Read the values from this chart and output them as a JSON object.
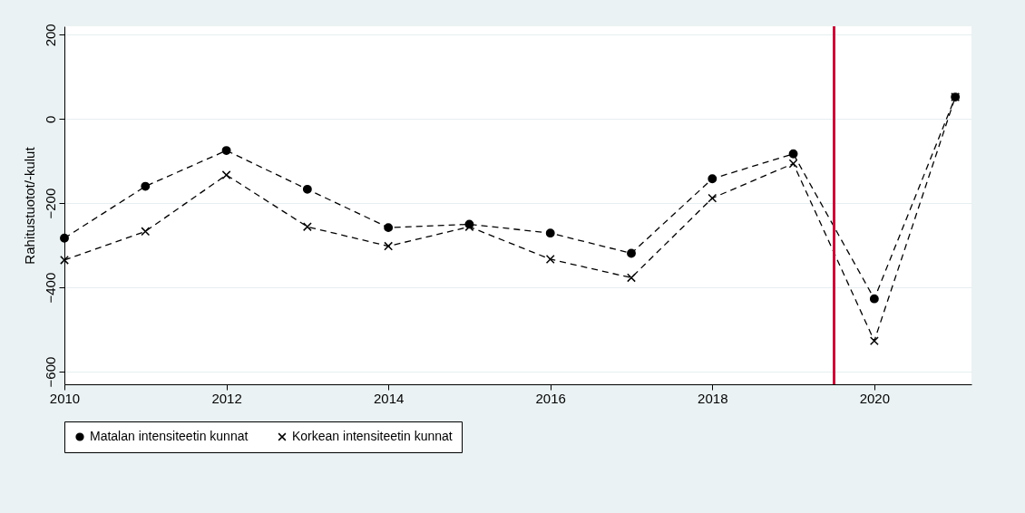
{
  "chart_data": {
    "type": "line",
    "ylabel": "Rahitustuotot/-kulut",
    "x": [
      2010,
      2011,
      2012,
      2013,
      2014,
      2015,
      2016,
      2017,
      2018,
      2019,
      2020,
      2021
    ],
    "xlim": [
      2010,
      2021.2
    ],
    "xticks": [
      2010,
      2012,
      2014,
      2016,
      2018,
      2020
    ],
    "ylim": [
      -630,
      220
    ],
    "yticks": [
      -600,
      -400,
      -200,
      0,
      200
    ],
    "grid": "y",
    "legend": "bottom",
    "line_style": "dashed",
    "series": [
      {
        "name": "Matalan intensiteetin kunnat",
        "color": "#000000",
        "marker": "circle",
        "values": [
          -283,
          -160,
          -75,
          -167,
          -258,
          -250,
          -271,
          -319,
          -142,
          -83,
          -427,
          52
        ]
      },
      {
        "name": "Korkean intensiteetin kunnat",
        "color": "#000000",
        "marker": "cross",
        "values": [
          -335,
          -267,
          -133,
          -256,
          -302,
          -256,
          -333,
          -377,
          -188,
          -106,
          -527,
          52
        ]
      }
    ],
    "ref_lines": [
      {
        "axis": "x",
        "value": 2019.5,
        "color": "#c0143c"
      }
    ]
  }
}
